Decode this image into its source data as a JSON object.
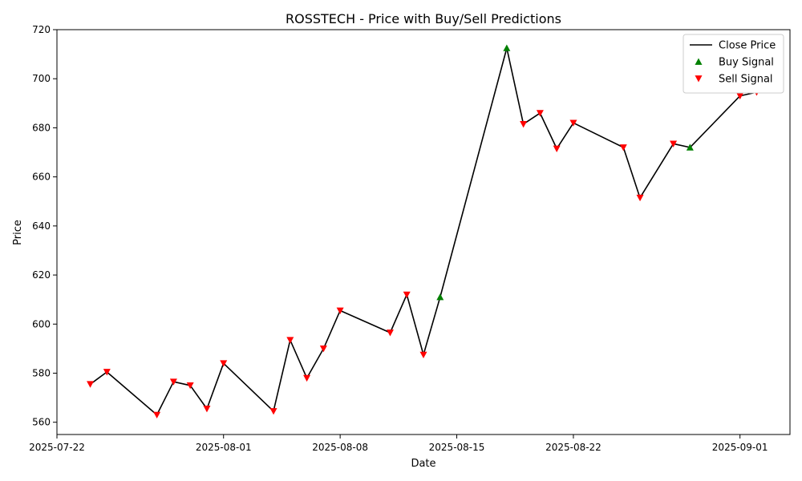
{
  "chart_data": {
    "type": "line",
    "title": "ROSSTECH - Price with Buy/Sell Predictions",
    "xlabel": "Date",
    "ylabel": "Price",
    "xlim": [
      "2025-07-22",
      "2025-09-04"
    ],
    "ylim": [
      555,
      720
    ],
    "x_ticks": [
      "2025-07-22",
      "2025-08-01",
      "2025-08-08",
      "2025-08-15",
      "2025-08-22",
      "2025-09-01"
    ],
    "y_ticks": [
      560,
      580,
      600,
      620,
      640,
      660,
      680,
      700,
      720
    ],
    "grid": false,
    "legend_position": "top-right",
    "series": [
      {
        "name": "Close Price",
        "kind": "line",
        "color": "#000000",
        "points": [
          [
            "2025-07-24",
            575.5
          ],
          [
            "2025-07-25",
            580.5
          ],
          [
            "2025-07-28",
            563
          ],
          [
            "2025-07-29",
            576.5
          ],
          [
            "2025-07-30",
            575
          ],
          [
            "2025-07-31",
            565.5
          ],
          [
            "2025-08-01",
            584
          ],
          [
            "2025-08-04",
            564.5
          ],
          [
            "2025-08-05",
            593.5
          ],
          [
            "2025-08-06",
            578
          ],
          [
            "2025-08-07",
            590
          ],
          [
            "2025-08-08",
            605.5
          ],
          [
            "2025-08-11",
            596.5
          ],
          [
            "2025-08-12",
            612
          ],
          [
            "2025-08-13",
            587.5
          ],
          [
            "2025-08-14",
            611
          ],
          [
            "2025-08-18",
            712.5
          ],
          [
            "2025-08-19",
            681.5
          ],
          [
            "2025-08-20",
            686
          ],
          [
            "2025-08-21",
            671.5
          ],
          [
            "2025-08-22",
            682
          ],
          [
            "2025-08-25",
            672
          ],
          [
            "2025-08-26",
            651.5
          ],
          [
            "2025-08-28",
            673.5
          ],
          [
            "2025-08-29",
            672
          ],
          [
            "2025-09-01",
            693
          ],
          [
            "2025-09-02",
            694.5
          ]
        ]
      },
      {
        "name": "Buy Signal",
        "kind": "scatter",
        "marker": "triangle-up",
        "color": "#008000",
        "points": [
          [
            "2025-08-14",
            611
          ],
          [
            "2025-08-18",
            712.5
          ],
          [
            "2025-08-29",
            672
          ]
        ]
      },
      {
        "name": "Sell Signal",
        "kind": "scatter",
        "marker": "triangle-down",
        "color": "#ff0000",
        "points": [
          [
            "2025-07-24",
            575.5
          ],
          [
            "2025-07-25",
            580.5
          ],
          [
            "2025-07-28",
            563
          ],
          [
            "2025-07-29",
            576.5
          ],
          [
            "2025-07-30",
            575
          ],
          [
            "2025-07-31",
            565.5
          ],
          [
            "2025-08-01",
            584
          ],
          [
            "2025-08-04",
            564.5
          ],
          [
            "2025-08-05",
            593.5
          ],
          [
            "2025-08-06",
            578
          ],
          [
            "2025-08-07",
            590
          ],
          [
            "2025-08-08",
            605.5
          ],
          [
            "2025-08-11",
            596.5
          ],
          [
            "2025-08-12",
            612
          ],
          [
            "2025-08-13",
            587.5
          ],
          [
            "2025-08-19",
            681.5
          ],
          [
            "2025-08-20",
            686
          ],
          [
            "2025-08-21",
            671.5
          ],
          [
            "2025-08-22",
            682
          ],
          [
            "2025-08-25",
            672
          ],
          [
            "2025-08-26",
            651.5
          ],
          [
            "2025-08-28",
            673.5
          ],
          [
            "2025-09-01",
            693
          ],
          [
            "2025-09-02",
            694.5
          ]
        ]
      }
    ]
  }
}
